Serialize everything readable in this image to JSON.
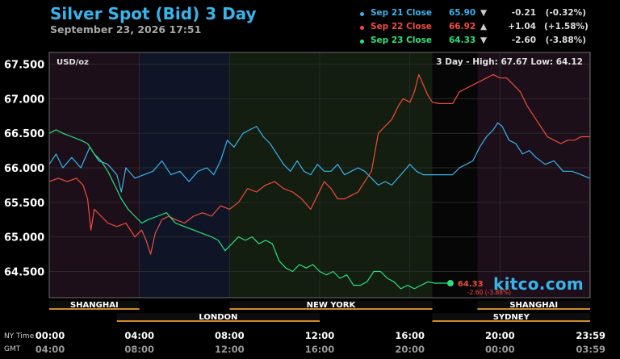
{
  "header": {
    "title": "Silver Spot (Bid) 3 Day",
    "date": "September 23, 2026 17:51"
  },
  "legend": [
    {
      "label": "Sep 21 Close",
      "value": "65.90",
      "arrow": "▼",
      "change": "-0.21",
      "pct": "(-0.32%)",
      "color": "#38b4ea"
    },
    {
      "label": "Sep 22 Close",
      "value": "66.92",
      "arrow": "▲",
      "change": "+1.04",
      "pct": "(+1.58%)",
      "color": "#ef4d3c"
    },
    {
      "label": "Sep 23 Close",
      "value": "64.33",
      "arrow": "▼",
      "change": "-2.60",
      "pct": "(-3.88%)",
      "color": "#2fe07a"
    }
  ],
  "chart_data": {
    "type": "line",
    "unit_label": "USD/oz",
    "range_label": "3 Day - High: 67.67   Low: 64.12",
    "ylim": [
      64.12,
      67.67
    ],
    "yticks": [
      64.5,
      65.0,
      65.5,
      66.0,
      66.5,
      67.0,
      67.5
    ],
    "ytick_labels": [
      "64.500",
      "65.000",
      "65.500",
      "66.000",
      "66.500",
      "67.000",
      "67.500"
    ],
    "xlim": [
      0,
      24
    ],
    "xticks": [
      0,
      4,
      8,
      12,
      16,
      20,
      23.983
    ],
    "xtick_labels_ny": [
      "00:00",
      "04:00",
      "08:00",
      "12:00",
      "16:00",
      "20:00",
      "23:59"
    ],
    "xtick_labels_gmt": [
      "04:00",
      "08:00",
      "12:00",
      "16:00",
      "20:00",
      "00:00",
      "03:59"
    ],
    "axis_row_labels": {
      "ny": "NY Time",
      "gmt": "GMT"
    },
    "sessions": [
      {
        "name": "SHANGHAI",
        "start": 0,
        "end": 4,
        "row": 1
      },
      {
        "name": "LONDON",
        "start": 3,
        "end": 12,
        "row": 2
      },
      {
        "name": "NEW YORK",
        "start": 8,
        "end": 17,
        "row": 1
      },
      {
        "name": "SHANGHAI",
        "start": 19,
        "end": 24,
        "row": 1
      },
      {
        "name": "SYDNEY",
        "start": 17,
        "end": 24,
        "row": 2
      }
    ],
    "last_point": {
      "x": 17.8,
      "y": 64.33,
      "label": "64.33",
      "sublabel": "-2.60 (-3.88%)"
    },
    "series": [
      {
        "name": "Sep 21 Close",
        "color": "#38b4ea",
        "points": [
          [
            0,
            66.05
          ],
          [
            0.3,
            66.2
          ],
          [
            0.6,
            66.0
          ],
          [
            1.0,
            66.15
          ],
          [
            1.4,
            66.0
          ],
          [
            1.8,
            66.3
          ],
          [
            2.2,
            66.1
          ],
          [
            2.6,
            66.05
          ],
          [
            3.0,
            65.9
          ],
          [
            3.2,
            65.65
          ],
          [
            3.4,
            66.0
          ],
          [
            3.8,
            65.85
          ],
          [
            4.2,
            65.9
          ],
          [
            4.6,
            65.95
          ],
          [
            5.0,
            66.1
          ],
          [
            5.4,
            65.9
          ],
          [
            5.8,
            65.95
          ],
          [
            6.2,
            65.8
          ],
          [
            6.6,
            65.95
          ],
          [
            7.0,
            66.0
          ],
          [
            7.3,
            65.9
          ],
          [
            7.6,
            66.1
          ],
          [
            7.9,
            66.4
          ],
          [
            8.2,
            66.3
          ],
          [
            8.6,
            66.5
          ],
          [
            8.9,
            66.55
          ],
          [
            9.2,
            66.6
          ],
          [
            9.5,
            66.45
          ],
          [
            9.8,
            66.35
          ],
          [
            10.1,
            66.2
          ],
          [
            10.4,
            66.05
          ],
          [
            10.7,
            65.95
          ],
          [
            11.0,
            66.1
          ],
          [
            11.3,
            65.95
          ],
          [
            11.6,
            65.9
          ],
          [
            11.9,
            66.05
          ],
          [
            12.2,
            65.95
          ],
          [
            12.5,
            65.95
          ],
          [
            12.8,
            66.05
          ],
          [
            13.1,
            65.9
          ],
          [
            13.4,
            65.95
          ],
          [
            13.7,
            66.0
          ],
          [
            14.0,
            65.95
          ],
          [
            14.3,
            65.85
          ],
          [
            14.6,
            65.75
          ],
          [
            14.9,
            65.8
          ],
          [
            15.2,
            65.75
          ],
          [
            15.6,
            65.9
          ],
          [
            16.0,
            66.05
          ],
          [
            16.3,
            65.95
          ],
          [
            16.6,
            65.9
          ],
          [
            17.0,
            65.9
          ],
          [
            17.3,
            65.9
          ],
          [
            17.6,
            65.9
          ],
          [
            17.9,
            65.9
          ],
          [
            18.2,
            66.0
          ],
          [
            18.5,
            66.05
          ],
          [
            18.8,
            66.1
          ],
          [
            19.1,
            66.3
          ],
          [
            19.4,
            66.45
          ],
          [
            19.7,
            66.55
          ],
          [
            19.9,
            66.65
          ],
          [
            20.1,
            66.6
          ],
          [
            20.4,
            66.4
          ],
          [
            20.7,
            66.35
          ],
          [
            21.0,
            66.2
          ],
          [
            21.3,
            66.25
          ],
          [
            21.6,
            66.15
          ],
          [
            22.0,
            66.05
          ],
          [
            22.4,
            66.1
          ],
          [
            22.8,
            65.95
          ],
          [
            23.2,
            65.95
          ],
          [
            23.6,
            65.9
          ],
          [
            23.98,
            65.85
          ]
        ]
      },
      {
        "name": "Sep 22 Close",
        "color": "#ef4d3c",
        "points": [
          [
            0,
            65.8
          ],
          [
            0.4,
            65.85
          ],
          [
            0.8,
            65.8
          ],
          [
            1.2,
            65.85
          ],
          [
            1.5,
            65.75
          ],
          [
            1.7,
            65.55
          ],
          [
            1.85,
            65.1
          ],
          [
            2.0,
            65.4
          ],
          [
            2.3,
            65.3
          ],
          [
            2.6,
            65.2
          ],
          [
            3.0,
            65.15
          ],
          [
            3.4,
            65.2
          ],
          [
            3.8,
            65.0
          ],
          [
            4.1,
            65.1
          ],
          [
            4.3,
            64.95
          ],
          [
            4.5,
            64.75
          ],
          [
            4.7,
            65.05
          ],
          [
            5.0,
            65.25
          ],
          [
            5.3,
            65.3
          ],
          [
            5.6,
            65.25
          ],
          [
            6.0,
            65.2
          ],
          [
            6.4,
            65.3
          ],
          [
            6.8,
            65.35
          ],
          [
            7.2,
            65.3
          ],
          [
            7.6,
            65.45
          ],
          [
            8.0,
            65.4
          ],
          [
            8.4,
            65.5
          ],
          [
            8.8,
            65.7
          ],
          [
            9.2,
            65.65
          ],
          [
            9.6,
            65.75
          ],
          [
            10.0,
            65.8
          ],
          [
            10.4,
            65.7
          ],
          [
            10.8,
            65.65
          ],
          [
            11.2,
            65.55
          ],
          [
            11.6,
            65.4
          ],
          [
            11.9,
            65.6
          ],
          [
            12.2,
            65.8
          ],
          [
            12.5,
            65.7
          ],
          [
            12.8,
            65.55
          ],
          [
            13.1,
            65.55
          ],
          [
            13.4,
            65.6
          ],
          [
            13.7,
            65.65
          ],
          [
            14.0,
            65.8
          ],
          [
            14.3,
            65.95
          ],
          [
            14.6,
            66.5
          ],
          [
            14.9,
            66.6
          ],
          [
            15.2,
            66.7
          ],
          [
            15.5,
            66.9
          ],
          [
            15.7,
            67.0
          ],
          [
            16.0,
            66.95
          ],
          [
            16.2,
            67.1
          ],
          [
            16.4,
            67.35
          ],
          [
            16.6,
            67.2
          ],
          [
            16.8,
            67.05
          ],
          [
            17.0,
            66.95
          ],
          [
            17.3,
            66.93
          ],
          [
            17.6,
            66.93
          ],
          [
            17.9,
            66.93
          ],
          [
            18.2,
            67.1
          ],
          [
            18.5,
            67.15
          ],
          [
            18.8,
            67.2
          ],
          [
            19.1,
            67.25
          ],
          [
            19.4,
            67.3
          ],
          [
            19.7,
            67.35
          ],
          [
            20.0,
            67.3
          ],
          [
            20.3,
            67.3
          ],
          [
            20.6,
            67.2
          ],
          [
            20.9,
            67.1
          ],
          [
            21.2,
            66.9
          ],
          [
            21.5,
            66.75
          ],
          [
            21.8,
            66.6
          ],
          [
            22.1,
            66.45
          ],
          [
            22.4,
            66.4
          ],
          [
            22.7,
            66.35
          ],
          [
            23.0,
            66.4
          ],
          [
            23.3,
            66.4
          ],
          [
            23.6,
            66.45
          ],
          [
            23.98,
            66.45
          ]
        ]
      },
      {
        "name": "Sep 23 Close",
        "color": "#2fe07a",
        "points": [
          [
            0,
            66.5
          ],
          [
            0.3,
            66.55
          ],
          [
            0.6,
            66.5
          ],
          [
            1.0,
            66.45
          ],
          [
            1.4,
            66.4
          ],
          [
            1.7,
            66.35
          ],
          [
            2.0,
            66.2
          ],
          [
            2.3,
            66.1
          ],
          [
            2.6,
            65.95
          ],
          [
            2.9,
            65.75
          ],
          [
            3.2,
            65.55
          ],
          [
            3.5,
            65.4
          ],
          [
            3.8,
            65.3
          ],
          [
            4.1,
            65.2
          ],
          [
            4.4,
            65.25
          ],
          [
            4.8,
            65.3
          ],
          [
            5.2,
            65.35
          ],
          [
            5.6,
            65.2
          ],
          [
            6.0,
            65.15
          ],
          [
            6.4,
            65.1
          ],
          [
            6.8,
            65.05
          ],
          [
            7.2,
            65.0
          ],
          [
            7.5,
            64.95
          ],
          [
            7.8,
            64.8
          ],
          [
            8.1,
            64.9
          ],
          [
            8.4,
            65.0
          ],
          [
            8.7,
            64.95
          ],
          [
            9.0,
            65.0
          ],
          [
            9.3,
            64.9
          ],
          [
            9.6,
            64.95
          ],
          [
            9.9,
            64.9
          ],
          [
            10.2,
            64.65
          ],
          [
            10.5,
            64.55
          ],
          [
            10.8,
            64.5
          ],
          [
            11.1,
            64.6
          ],
          [
            11.4,
            64.55
          ],
          [
            11.7,
            64.6
          ],
          [
            12.0,
            64.5
          ],
          [
            12.3,
            64.45
          ],
          [
            12.6,
            64.5
          ],
          [
            12.9,
            64.4
          ],
          [
            13.2,
            64.45
          ],
          [
            13.5,
            64.3
          ],
          [
            13.8,
            64.3
          ],
          [
            14.1,
            64.35
          ],
          [
            14.4,
            64.5
          ],
          [
            14.7,
            64.5
          ],
          [
            15.0,
            64.4
          ],
          [
            15.3,
            64.35
          ],
          [
            15.6,
            64.25
          ],
          [
            15.9,
            64.3
          ],
          [
            16.2,
            64.25
          ],
          [
            16.5,
            64.3
          ],
          [
            16.8,
            64.35
          ],
          [
            17.1,
            64.33
          ],
          [
            17.4,
            64.33
          ],
          [
            17.8,
            64.33
          ]
        ]
      }
    ]
  },
  "brand": {
    "text": "kitco.com"
  }
}
